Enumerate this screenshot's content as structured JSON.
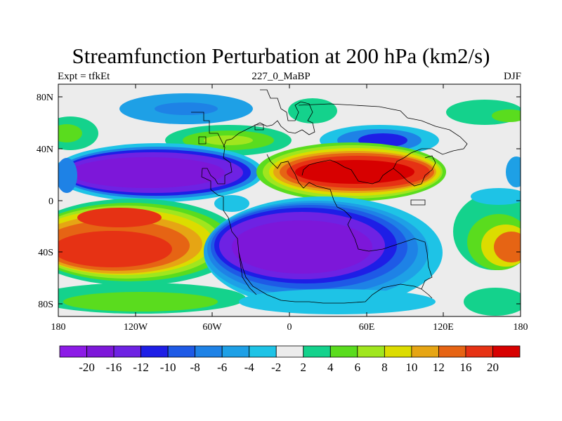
{
  "title": "Streamfunction Perturbation at 200 hPa (km2/s)",
  "subtitle_left": "Expt = tfkEt",
  "subtitle_center": "227_0_MaBP",
  "subtitle_right": "DJF",
  "lat_labels": [
    "80N",
    "40N",
    "0",
    "40S",
    "80S"
  ],
  "lon_labels": [
    "180",
    "120W",
    "60W",
    "0",
    "60E",
    "120E",
    "180"
  ],
  "colorbar": {
    "labels": [
      "-20",
      "-16",
      "-12",
      "-10",
      "-8",
      "-6",
      "-4",
      "-2",
      "2",
      "4",
      "6",
      "8",
      "10",
      "12",
      "16",
      "20"
    ],
    "colors": [
      "#8c1be6",
      "#7d17d9",
      "#6e22e3",
      "#1e1ee6",
      "#1e5ae6",
      "#1e82e6",
      "#1ea0e6",
      "#1ec3e6",
      "#ececec",
      "#14d28c",
      "#5adc1e",
      "#a0e61e",
      "#dcdc00",
      "#e6a514",
      "#e66414",
      "#e63214",
      "#d70000"
    ]
  },
  "colors": {
    "neutral": "#ececec",
    "outline": "#000000"
  }
}
